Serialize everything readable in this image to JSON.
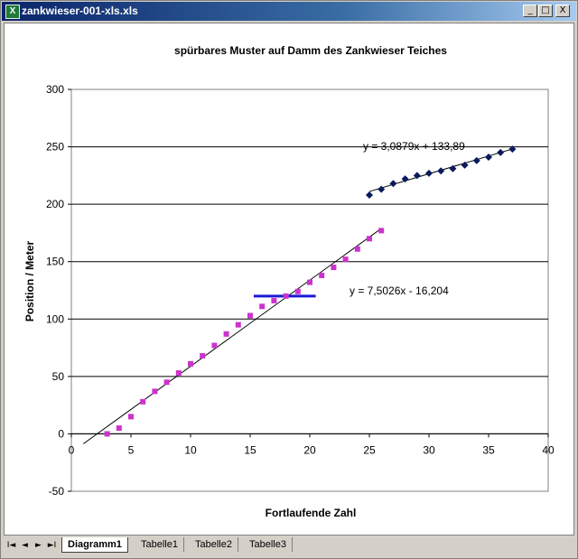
{
  "window": {
    "title": "zankwieser-001-xls.xls",
    "icon": "excel-icon",
    "controls": {
      "minimize": "_",
      "restore": "□",
      "close": "X"
    }
  },
  "tabs": {
    "items": [
      {
        "label": "Diagramm1",
        "active": true
      },
      {
        "label": "Tabelle1",
        "active": false
      },
      {
        "label": "Tabelle2",
        "active": false
      },
      {
        "label": "Tabelle3",
        "active": false
      }
    ],
    "nav": {
      "first": "I◄",
      "prev": "◄",
      "next": "►",
      "last": "►I"
    }
  },
  "chart_data": {
    "type": "scatter",
    "title": "spürbares Muster auf Damm des Zankwieser Teiches",
    "xlabel": "Fortlaufende Zahl",
    "ylabel": "Position / Meter",
    "xlim": [
      0,
      40
    ],
    "ylim": [
      -50,
      300
    ],
    "xticks": [
      "0",
      "5",
      "10",
      "15",
      "20",
      "25",
      "30",
      "35",
      "40"
    ],
    "yticks": [
      "-50",
      "0",
      "50",
      "100",
      "150",
      "200",
      "250",
      "300"
    ],
    "grid": "horizontal",
    "series": [
      {
        "marker": "square",
        "color": "#cc33cc",
        "x": [
          3,
          4,
          5,
          6,
          7,
          8,
          9,
          10,
          11,
          12,
          13,
          14,
          15,
          16,
          17,
          18,
          19,
          20,
          21,
          22,
          23,
          24,
          25,
          26
        ],
        "y": [
          0,
          5,
          15,
          28,
          37,
          45,
          53,
          61,
          68,
          77,
          87,
          95,
          103,
          111,
          116,
          120,
          124,
          132,
          138,
          145,
          152,
          161,
          170,
          177
        ]
      },
      {
        "marker": "diamond",
        "color": "#0a1a5c",
        "x": [
          25,
          26,
          27,
          28,
          29,
          30,
          31,
          32,
          33,
          34,
          35,
          36,
          37
        ],
        "y": [
          208,
          213,
          218,
          222,
          225,
          227,
          229,
          231,
          234,
          238,
          241,
          245,
          248
        ]
      }
    ],
    "trendlines": [
      {
        "label": "y = 7,5026x - 16,204",
        "slope": 7.5026,
        "intercept": -16.204,
        "x_range": [
          1,
          26
        ],
        "color": "#000000"
      },
      {
        "label": "y = 3,0879x + 133,89",
        "slope": 3.0879,
        "intercept": 133.89,
        "x_range": [
          25,
          37
        ],
        "color": "#000000"
      }
    ],
    "reference_lines": [
      {
        "x_range": [
          15.3,
          20.5
        ],
        "y": 120,
        "color": "#1a1ad6"
      }
    ],
    "colors": {
      "plot_border": "#808080",
      "grid": "#000000"
    }
  }
}
